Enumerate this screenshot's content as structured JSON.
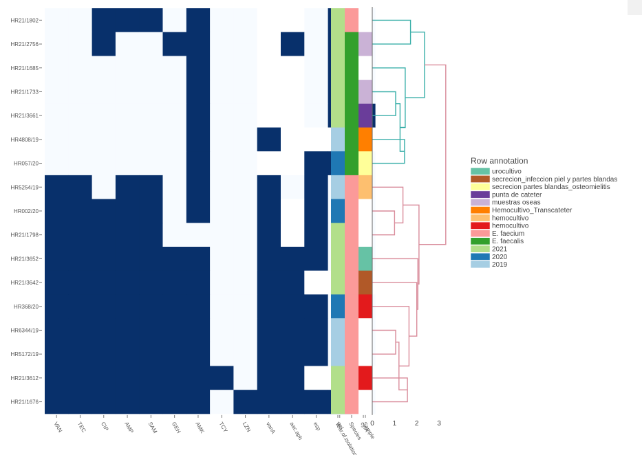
{
  "chart_data": {
    "type": "heatmap",
    "rows": [
      "HR21/1802",
      "HR21/2756",
      "HR21/1685",
      "HR21/1733",
      "HR21/3661",
      "HR4808/19",
      "HR057/20",
      "HR5254/19",
      "HR002/20",
      "HR21/1798",
      "HR21/3652",
      "HR21/3642",
      "HR368/20",
      "HR6344/19",
      "HR5172/19",
      "HR21/3612",
      "HR21/1676"
    ],
    "columns": [
      "VAN",
      "TEC",
      "CIP",
      "AMP",
      "SAM",
      "GEH",
      "AMK",
      "TCY",
      "LZN",
      "vanA",
      "aac.aph",
      "esp",
      "gel",
      "cylA"
    ],
    "values": [
      [
        0,
        0,
        1,
        1,
        1,
        0,
        1,
        0,
        0,
        0,
        0,
        0,
        1,
        0
      ],
      [
        0,
        0,
        1,
        0,
        0,
        1,
        1,
        0,
        0,
        0,
        1,
        0,
        1,
        0
      ],
      [
        0,
        0,
        0,
        0,
        0,
        0,
        1,
        0,
        0,
        0,
        0,
        0,
        1,
        0
      ],
      [
        0,
        0,
        0,
        0,
        0,
        0,
        1,
        0,
        0,
        0,
        0,
        0,
        1,
        0
      ],
      [
        0,
        0,
        0,
        0,
        0,
        0,
        1,
        0,
        0,
        0,
        0,
        0,
        1,
        1
      ],
      [
        0,
        0,
        0,
        0,
        0,
        0,
        1,
        0,
        0,
        1,
        0,
        0,
        0,
        0
      ],
      [
        0,
        0,
        0,
        0,
        0,
        0,
        1,
        0,
        0,
        0,
        0,
        1,
        1,
        0
      ],
      [
        1,
        1,
        0,
        1,
        1,
        0,
        1,
        0,
        0,
        1,
        0,
        1,
        0,
        0
      ],
      [
        1,
        1,
        1,
        1,
        1,
        0,
        1,
        0,
        0,
        1,
        0,
        1,
        0,
        0
      ],
      [
        1,
        1,
        1,
        1,
        1,
        0,
        0,
        0,
        0,
        1,
        0,
        1,
        0,
        0
      ],
      [
        1,
        1,
        1,
        1,
        1,
        1,
        1,
        0,
        0,
        1,
        1,
        1,
        0,
        0
      ],
      [
        1,
        1,
        1,
        1,
        1,
        1,
        1,
        0,
        0,
        1,
        1,
        0,
        0,
        0
      ],
      [
        1,
        1,
        1,
        1,
        1,
        1,
        1,
        0,
        0,
        1,
        1,
        1,
        0,
        0
      ],
      [
        1,
        1,
        1,
        1,
        1,
        1,
        1,
        0,
        0,
        1,
        1,
        1,
        0,
        0
      ],
      [
        1,
        1,
        1,
        1,
        1,
        1,
        1,
        0,
        0,
        1,
        1,
        1,
        0,
        0
      ],
      [
        1,
        1,
        1,
        1,
        1,
        1,
        1,
        1,
        0,
        1,
        1,
        0,
        0,
        0
      ],
      [
        1,
        1,
        1,
        1,
        1,
        1,
        1,
        0,
        1,
        1,
        1,
        1,
        1,
        0
      ]
    ],
    "value_colors": {
      "present": "#08306b",
      "absent": "#f7fbff"
    },
    "absent_alt_shade": "#ffffff",
    "absent_alt_cells": [
      [
        0,
        9
      ],
      [
        0,
        10
      ],
      [
        1,
        9
      ],
      [
        2,
        9
      ],
      [
        2,
        10
      ],
      [
        3,
        9
      ],
      [
        3,
        10
      ],
      [
        4,
        9
      ],
      [
        4,
        10
      ],
      [
        5,
        10
      ],
      [
        5,
        11
      ],
      [
        5,
        12
      ],
      [
        5,
        13
      ],
      [
        6,
        9
      ],
      [
        6,
        10
      ],
      [
        8,
        10
      ],
      [
        9,
        10
      ],
      [
        11,
        11
      ],
      [
        11,
        12
      ],
      [
        11,
        13
      ],
      [
        15,
        11
      ],
      [
        15,
        12
      ],
      [
        15,
        13
      ]
    ],
    "annotation_columns": [
      "Year.of.isolation",
      "Species",
      "Sample"
    ],
    "annotations": {
      "Year.of.isolation": [
        "2021",
        "2021",
        "2021",
        "2021",
        "2021",
        "2019",
        "2020",
        "2019",
        "2020",
        "2021",
        "2021",
        "2021",
        "2020",
        "2019",
        "2019",
        "2021",
        "2021"
      ],
      "Species": [
        "E. faecium",
        "E. faecalis",
        "E. faecalis",
        "E. faecalis",
        "E. faecalis",
        "E. faecalis",
        "E. faecalis",
        "E. faecium",
        "E. faecium",
        "E. faecium",
        "E. faecium",
        "E. faecium",
        "E. faecium",
        "E. faecium",
        "E. faecium",
        "E. faecium",
        "E. faecium"
      ],
      "Sample": [
        "",
        "muestras oseas",
        "",
        "muestras oseas",
        "punta de cateter",
        "Hemocultivo_Transcateter",
        "secrecion partes blandas_osteomielitis",
        "hemocultivo",
        "",
        "",
        "urocultivo",
        "secrecion_infeccion piel y partes blandas",
        "hemocultivo_red",
        "",
        "",
        "hemocultivo_red",
        ""
      ]
    },
    "dendrogram": {
      "x_ticks": [
        "0",
        "1",
        "2",
        "3"
      ],
      "xlim": [
        0,
        3.4
      ],
      "upper_cluster_color": "#3aafa9",
      "lower_cluster_color": "#d98b9a",
      "links": [
        {
          "a": 0,
          "b": 1,
          "height": 1.72
        },
        {
          "a": 3,
          "b": 4,
          "height": 1.05
        },
        {
          "a": 5,
          "b": 6,
          "height": 1.45
        },
        {
          "a": "L2",
          "b": "L3",
          "height": 1.25
        },
        {
          "a": 2,
          "b": "L4",
          "height": 1.48
        },
        {
          "a": "L1",
          "b": "L5",
          "height": 2.35
        },
        {
          "a": 8,
          "b": 9,
          "height": 1.0
        },
        {
          "a": 7,
          "b": "L7",
          "height": 1.38
        },
        {
          "a": 13,
          "b": 14,
          "height": 1.05
        },
        {
          "a": 15,
          "b": 16,
          "height": 1.58
        },
        {
          "a": "L9",
          "b": "L10",
          "height": 1.2
        },
        {
          "a": 12,
          "b": "L11",
          "height": 1.65
        },
        {
          "a": 11,
          "b": "L12",
          "height": 2.0
        },
        {
          "a": 10,
          "b": "L13",
          "height": 2.05
        },
        {
          "a": "L8",
          "b": "L14",
          "height": 2.1
        },
        {
          "a": "L6",
          "b": "L15",
          "height": 3.3
        }
      ]
    },
    "legend": {
      "title": "Row annotation",
      "position": "right",
      "items": [
        {
          "label": "urocultivo",
          "color": "#66c2a5"
        },
        {
          "label": "secrecion_infeccion piel y partes blandas",
          "color": "#b15928"
        },
        {
          "label": "secrecion partes blandas_osteomielitis",
          "color": "#ffff99"
        },
        {
          "label": "punta de cateter",
          "color": "#6a3d9a"
        },
        {
          "label": "muestras oseas",
          "color": "#cab2d6"
        },
        {
          "label": "Hemocultivo_Transcateter",
          "color": "#ff7f00"
        },
        {
          "label": "hemocultivo",
          "color": "#fdbf6f"
        },
        {
          "label": "hemocultivo",
          "color": "#e31a1c"
        },
        {
          "label": "E. faecium",
          "color": "#fb9a99"
        },
        {
          "label": "E. faecalis",
          "color": "#33a02c"
        },
        {
          "label": "2021",
          "color": "#b2df8a"
        },
        {
          "label": "2020",
          "color": "#1f78b4"
        },
        {
          "label": "2019",
          "color": "#a6cee3"
        }
      ]
    },
    "sample_color_map": {
      "": "#ffffff",
      "muestras oseas": "#cab2d6",
      "punta de cateter": "#6a3d9a",
      "Hemocultivo_Transcateter": "#ff7f00",
      "secrecion partes blandas_osteomielitis": "#ffff99",
      "hemocultivo": "#fdbf6f",
      "hemocultivo_red": "#e31a1c",
      "urocultivo": "#66c2a5",
      "secrecion_infeccion piel y partes blandas": "#b15928"
    },
    "species_color_map": {
      "E. faecium": "#fb9a99",
      "E. faecalis": "#33a02c"
    },
    "year_color_map": {
      "2021": "#b2df8a",
      "2020": "#1f78b4",
      "2019": "#a6cee3"
    }
  }
}
